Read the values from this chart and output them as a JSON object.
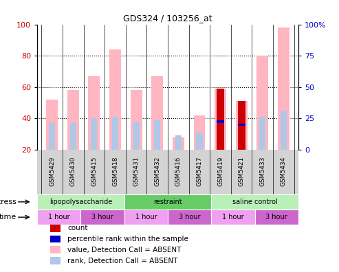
{
  "title": "GDS324 / 103256_at",
  "samples": [
    "GSM5429",
    "GSM5430",
    "GSM5415",
    "GSM5418",
    "GSM5431",
    "GSM5432",
    "GSM5416",
    "GSM5417",
    "GSM5419",
    "GSM5421",
    "GSM5433",
    "GSM5434"
  ],
  "pink_bars": [
    52,
    58,
    67,
    84,
    58,
    67,
    28,
    42,
    59,
    51,
    80,
    98
  ],
  "light_blue_bars": [
    37,
    37,
    40,
    41,
    38,
    39,
    29,
    31,
    39,
    37,
    41,
    45
  ],
  "red_bars": [
    0,
    0,
    0,
    0,
    0,
    0,
    0,
    0,
    59,
    51,
    0,
    0
  ],
  "blue_marks": [
    0,
    0,
    0,
    0,
    0,
    0,
    0,
    0,
    38,
    36,
    0,
    0
  ],
  "ylim_left": [
    20,
    100
  ],
  "ylim_right": [
    0,
    100
  ],
  "yticks_left": [
    20,
    40,
    60,
    80,
    100
  ],
  "ytick_labels_left": [
    "20",
    "40",
    "60",
    "80",
    "100"
  ],
  "yticks_right": [
    0,
    25,
    50,
    75,
    100
  ],
  "ytick_labels_right": [
    "0",
    "25",
    "50",
    "75",
    "100%"
  ],
  "stress_groups": [
    {
      "label": "lipopolysaccharide",
      "start": 0,
      "end": 4
    },
    {
      "label": "restraint",
      "start": 4,
      "end": 8
    },
    {
      "label": "saline control",
      "start": 8,
      "end": 12
    }
  ],
  "time_groups": [
    {
      "label": "1 hour",
      "start": 0,
      "end": 2
    },
    {
      "label": "3 hour",
      "start": 2,
      "end": 4
    },
    {
      "label": "1 hour",
      "start": 4,
      "end": 6
    },
    {
      "label": "3 hour",
      "start": 6,
      "end": 8
    },
    {
      "label": "1 hour",
      "start": 8,
      "end": 10
    },
    {
      "label": "3 hour",
      "start": 10,
      "end": 12
    }
  ],
  "legend_items": [
    {
      "color": "#cc0000",
      "label": "count"
    },
    {
      "color": "#0000cc",
      "label": "percentile rank within the sample"
    },
    {
      "color": "#ffb6c1",
      "label": "value, Detection Call = ABSENT"
    },
    {
      "color": "#b0c8e8",
      "label": "rank, Detection Call = ABSENT"
    }
  ],
  "pink_color": "#FFB6C1",
  "light_blue_color": "#b0c8e8",
  "red_color": "#CC0000",
  "blue_mark_color": "#0000CC",
  "left_axis_color": "#CC0000",
  "right_axis_color": "#0000CC",
  "stress_color_light": "#b8f0b8",
  "stress_color_dark": "#66cc66",
  "time_color_light": "#f0a0f0",
  "time_color_dark": "#cc66cc",
  "grid_bg_color": "#d3d3d3"
}
